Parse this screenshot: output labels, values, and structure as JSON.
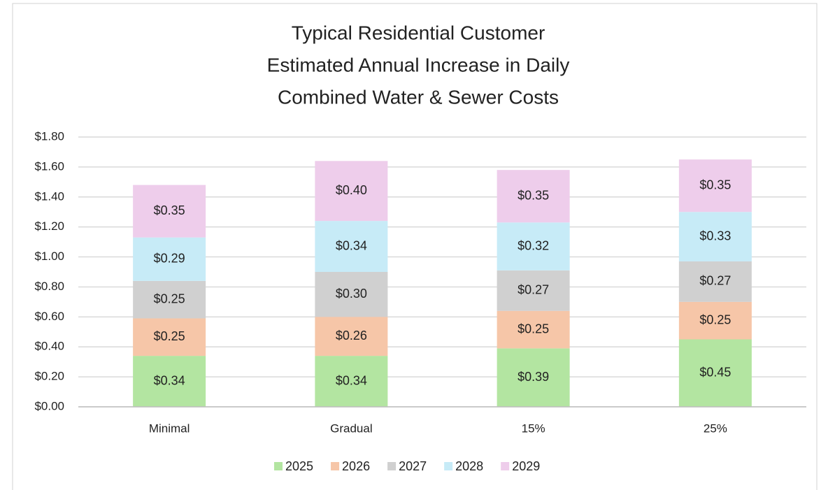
{
  "chart_data": {
    "type": "stacked-bar",
    "title": [
      "Typical Residential Customer",
      "Estimated Annual Increase in Daily",
      "Combined Water & Sewer Costs"
    ],
    "categories": [
      "Minimal",
      "Gradual",
      "15%",
      "25%"
    ],
    "series": [
      {
        "name": "2025",
        "color": "#b3e5a1",
        "values": [
          0.34,
          0.34,
          0.39,
          0.45
        ],
        "value_labels": [
          "$0.34",
          "$0.34",
          "$0.39",
          "$0.45"
        ]
      },
      {
        "name": "2026",
        "color": "#f6c6a8",
        "values": [
          0.25,
          0.26,
          0.25,
          0.25
        ],
        "value_labels": [
          "$0.25",
          "$0.26",
          "$0.25",
          "$0.25"
        ]
      },
      {
        "name": "2027",
        "color": "#d0d0d0",
        "values": [
          0.25,
          0.3,
          0.27,
          0.27
        ],
        "value_labels": [
          "$0.25",
          "$0.30",
          "$0.27",
          "$0.27"
        ]
      },
      {
        "name": "2028",
        "color": "#c7ebf7",
        "values": [
          0.29,
          0.34,
          0.32,
          0.33
        ],
        "value_labels": [
          "$0.29",
          "$0.34",
          "$0.32",
          "$0.33"
        ]
      },
      {
        "name": "2029",
        "color": "#eecdeb",
        "values": [
          0.35,
          0.4,
          0.35,
          0.35
        ],
        "value_labels": [
          "$0.35",
          "$0.40",
          "$0.35",
          "$0.35"
        ]
      }
    ],
    "ylim": [
      0,
      1.8
    ],
    "yticks": [
      {
        "value": 0,
        "label": "$0.00"
      },
      {
        "value": 0.2,
        "label": "$0.20"
      },
      {
        "value": 0.4,
        "label": "$0.40"
      },
      {
        "value": 0.6,
        "label": "$0.60"
      },
      {
        "value": 0.8,
        "label": "$0.80"
      },
      {
        "value": 1.0,
        "label": "$1.00"
      },
      {
        "value": 1.2,
        "label": "$1.20"
      },
      {
        "value": 1.4,
        "label": "$1.40"
      },
      {
        "value": 1.6,
        "label": "$1.60"
      },
      {
        "value": 1.8,
        "label": "$1.80"
      }
    ],
    "grid": true,
    "legend": "bottom"
  }
}
